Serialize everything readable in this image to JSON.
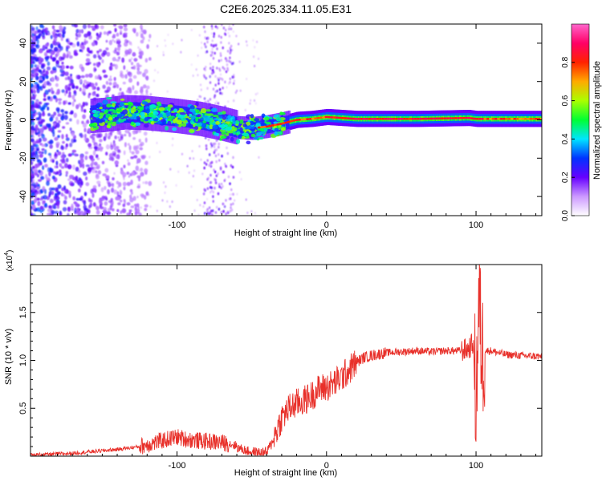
{
  "title": "C2E6.2025.334.11.05.E31",
  "colors": {
    "snr_line": "#e8302a",
    "axis": "#000000",
    "background": "#ffffff"
  },
  "chart_data": [
    {
      "type": "heatmap",
      "name": "spectrogram",
      "xlabel": "Height of straight line (km)",
      "ylabel": "Frequency (Hz)",
      "xlim": [
        -198,
        144
      ],
      "ylim": [
        -50,
        50
      ],
      "xticks": [
        -100,
        0,
        100
      ],
      "yticks": [
        -40,
        -20,
        0,
        20,
        40
      ],
      "xtick_labels": [
        "-100",
        "0",
        "100"
      ],
      "ytick_labels": [
        "-40",
        "-20",
        "0",
        "20",
        "40"
      ],
      "centerline": [
        [
          -198,
          1
        ],
        [
          -170,
          1.5
        ],
        [
          -150,
          2.5
        ],
        [
          -135,
          4
        ],
        [
          -120,
          3.5
        ],
        [
          -100,
          2
        ],
        [
          -85,
          0.5
        ],
        [
          -70,
          -2
        ],
        [
          -60,
          -4
        ],
        [
          -50,
          -4.5
        ],
        [
          -40,
          -3.5
        ],
        [
          -30,
          -2
        ],
        [
          -20,
          0
        ],
        [
          -10,
          0.5
        ],
        [
          0,
          1.5
        ],
        [
          10,
          1
        ],
        [
          20,
          0.5
        ],
        [
          60,
          0.5
        ],
        [
          95,
          1
        ],
        [
          100,
          0.5
        ],
        [
          144,
          0.5
        ]
      ],
      "colorbar": {
        "label": "Normalized spectral amplitude",
        "range": [
          0,
          1
        ],
        "ticks": [
          0.0,
          0.2,
          0.4,
          0.6,
          0.8
        ],
        "tick_labels": [
          "0.0",
          "0.2",
          "0.4",
          "0.6",
          "0.8"
        ],
        "colormap": [
          "#ffffff",
          "#cc99ff",
          "#6600ff",
          "#0033ff",
          "#00e5ff",
          "#00ff33",
          "#aaff00",
          "#ffaa00",
          "#ff2200",
          "#ff0066",
          "#ff66cc"
        ]
      }
    },
    {
      "type": "line",
      "name": "snr",
      "xlabel": "Height of straight line (km)",
      "ylabel": "SNR (10 * v/v)",
      "y_multiplier": "(x10",
      "y_multiplier_exp": "4",
      "y_multiplier_close": ")",
      "xlim": [
        -198,
        144
      ],
      "ylim": [
        0,
        2.0
      ],
      "xticks": [
        -100,
        0,
        100
      ],
      "yticks": [
        0.5,
        1.0,
        1.5
      ],
      "xtick_labels": [
        "-100",
        "0",
        "100"
      ],
      "ytick_labels": [
        "0.5",
        "1.0",
        "1.5"
      ],
      "series": [
        {
          "name": "SNR",
          "x": [
            -198,
            -185,
            -170,
            -155,
            -140,
            -125,
            -115,
            -108,
            -100,
            -95,
            -85,
            -75,
            -65,
            -58,
            -52,
            -46,
            -40,
            -35,
            -30,
            -25,
            -20,
            -15,
            -10,
            -5,
            0,
            5,
            10,
            15,
            20,
            25,
            30,
            40,
            50,
            60,
            70,
            80,
            90,
            95,
            98,
            100,
            102,
            104,
            106,
            110,
            120,
            130,
            144
          ],
          "y": [
            0.01,
            0.02,
            0.03,
            0.05,
            0.07,
            0.1,
            0.14,
            0.17,
            0.2,
            0.18,
            0.16,
            0.15,
            0.13,
            0.1,
            0.07,
            0.05,
            0.06,
            0.2,
            0.4,
            0.5,
            0.55,
            0.58,
            0.63,
            0.7,
            0.72,
            0.76,
            0.82,
            0.9,
            0.98,
            1.03,
            1.05,
            1.08,
            1.09,
            1.1,
            1.09,
            1.1,
            1.1,
            1.12,
            1.18,
            0.6,
            1.6,
            1.05,
            1.1,
            1.1,
            1.06,
            1.05,
            1.04
          ]
        }
      ]
    }
  ]
}
